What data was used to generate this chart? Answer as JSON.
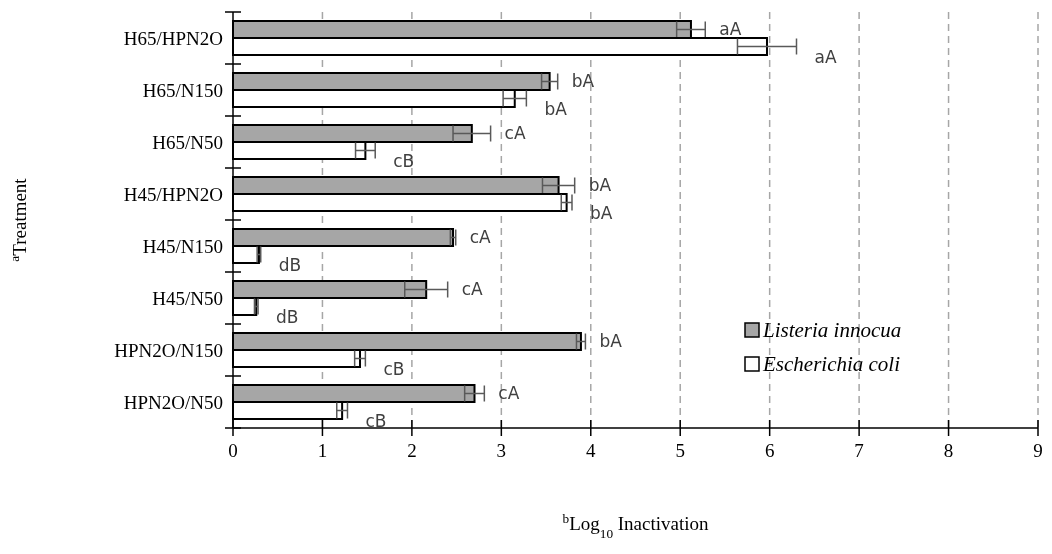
{
  "chart_data": {
    "type": "bar",
    "orientation": "horizontal",
    "xlabel": "$^{b}$Log$_{10}$ Inactivation",
    "ylabel": "$^{a}$Treatment",
    "categories": [
      "H65/HPN2O",
      "H65/N150",
      "H65/N50",
      "H45/HPN2O",
      "H45/N150",
      "H45/N50",
      "HPN2O/N150",
      "HPN2O/N50"
    ],
    "series": [
      {
        "name": "Listeria innocua",
        "color": "#a6a6a6",
        "values": [
          5.12,
          3.54,
          2.67,
          3.64,
          2.46,
          2.16,
          3.89,
          2.7
        ],
        "errors": [
          0.16,
          0.09,
          0.21,
          0.18,
          0.03,
          0.24,
          0.05,
          0.11
        ],
        "value_labels": [
          "aA",
          "bA",
          "cA",
          "bA",
          "cA",
          "cA",
          "bA",
          "cA"
        ]
      },
      {
        "name": "Escherichia coli",
        "color": "#ffffff",
        "values": [
          5.97,
          3.15,
          1.48,
          3.73,
          0.29,
          0.26,
          1.42,
          1.22
        ],
        "errors": [
          0.33,
          0.13,
          0.11,
          0.06,
          0.02,
          0.02,
          0.06,
          0.06
        ],
        "value_labels": [
          "aA",
          "bA",
          "cB",
          "bA",
          "dB",
          "dB",
          "cB",
          "cB"
        ]
      }
    ],
    "xlim": [
      0,
      9
    ],
    "xticks": [
      0,
      1,
      2,
      3,
      4,
      5,
      6,
      7,
      8,
      9
    ],
    "grid": "x",
    "legend": "bottom right"
  }
}
